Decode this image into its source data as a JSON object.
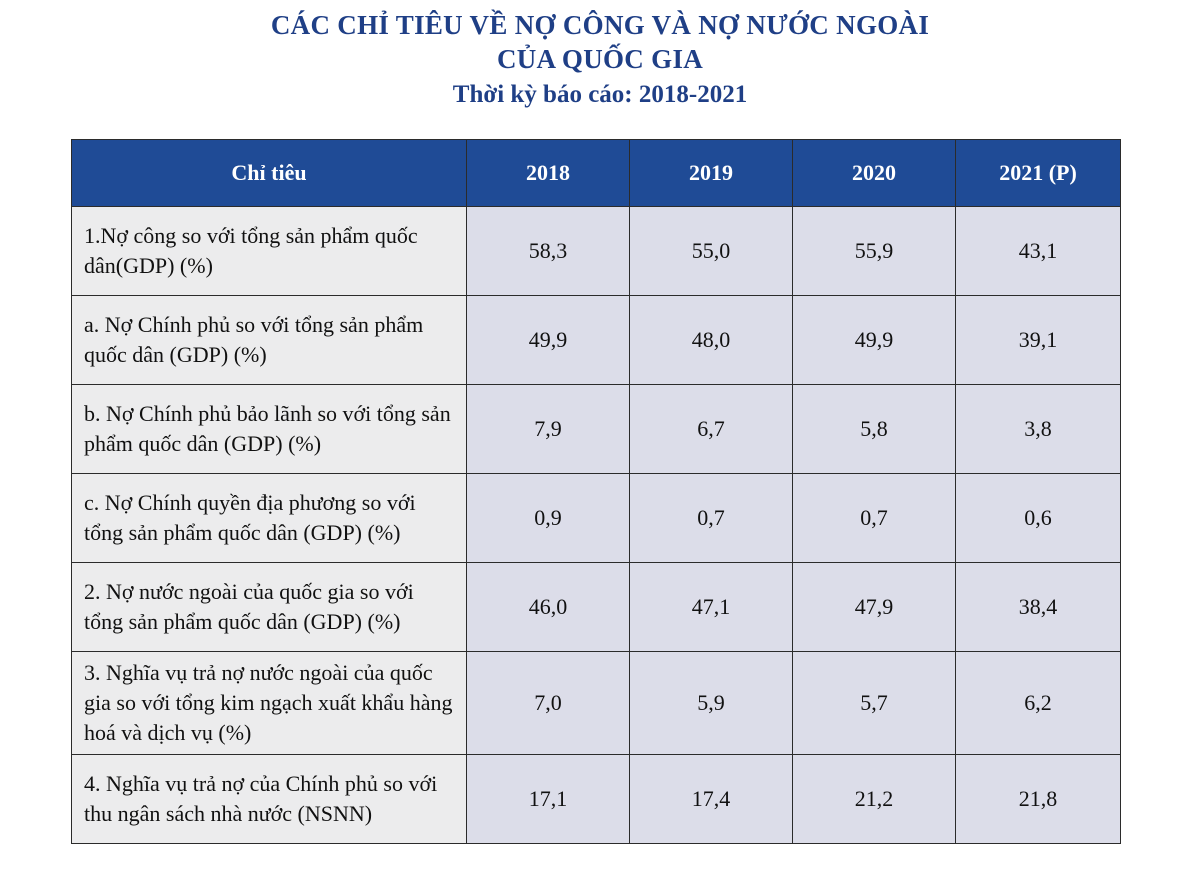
{
  "title": {
    "line1": "CÁC CHỈ TIÊU VỀ NỢ CÔNG VÀ NỢ NƯỚC NGOÀI",
    "line2": "CỦA QUỐC GIA",
    "period": "Thời kỳ báo cáo: 2018-2021"
  },
  "table": {
    "headers": [
      "Chỉ tiêu",
      "2018",
      "2019",
      "2020",
      "2021 (P)"
    ],
    "rows": [
      {
        "label": "1.Nợ công so với tổng sản phẩm quốc dân(GDP) (%)",
        "values": [
          "58,3",
          "55,0",
          "55,9",
          "43,1"
        ]
      },
      {
        "label": "a. Nợ Chính phủ so với tổng sản phẩm quốc dân (GDP) (%)",
        "values": [
          "49,9",
          "48,0",
          "49,9",
          "39,1"
        ]
      },
      {
        "label": "b. Nợ Chính phủ bảo lãnh so với tổng sản phẩm quốc dân (GDP) (%)",
        "values": [
          "7,9",
          "6,7",
          "5,8",
          "3,8"
        ]
      },
      {
        "label": "c. Nợ Chính quyền địa phương so với tổng sản phẩm quốc dân (GDP) (%)",
        "values": [
          "0,9",
          "0,7",
          "0,7",
          "0,6"
        ]
      },
      {
        "label": "2. Nợ nước ngoài của quốc gia so với tổng sản phẩm quốc dân (GDP) (%)",
        "values": [
          "46,0",
          "47,1",
          "47,9",
          "38,4"
        ]
      },
      {
        "label": "3. Nghĩa vụ trả nợ nước ngoài của quốc gia so với tổng kim ngạch xuất khẩu hàng hoá và dịch vụ (%)",
        "values": [
          "7,0",
          "5,9",
          "5,7",
          "6,2"
        ]
      },
      {
        "label": "4. Nghĩa vụ trả nợ của Chính phủ so với thu ngân sách nhà nước (NSNN)",
        "values": [
          "17,1",
          "17,4",
          "21,2",
          "21,8"
        ]
      }
    ]
  }
}
